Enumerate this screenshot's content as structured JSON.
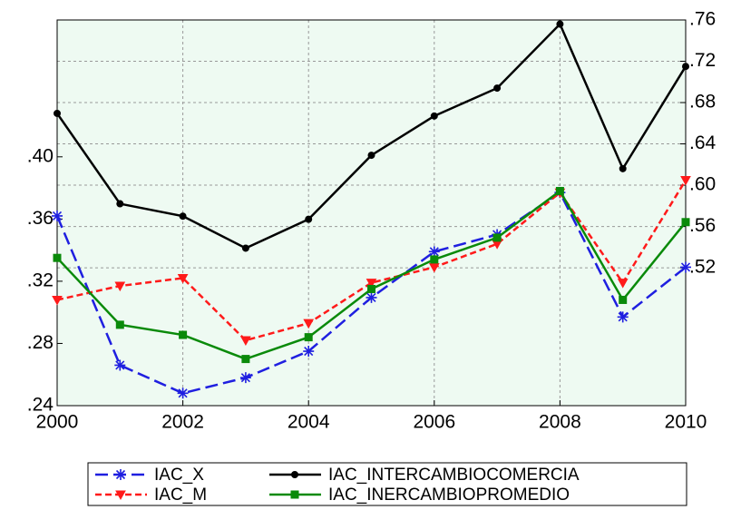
{
  "chart_data": {
    "type": "line",
    "x": [
      2000,
      2001,
      2002,
      2003,
      2004,
      2005,
      2006,
      2007,
      2008,
      2009,
      2010
    ],
    "xlim": [
      2000,
      2010
    ],
    "xticks": [
      2000,
      2002,
      2004,
      2006,
      2008,
      2010
    ],
    "ylim": [
      0.24,
      0.488
    ],
    "yticks": [
      {
        "value": 0.24,
        "label": ".24"
      },
      {
        "value": 0.28,
        "label": ".28"
      },
      {
        "value": 0.32,
        "label": ".32"
      },
      {
        "value": 0.36,
        "label": ".36"
      },
      {
        "value": 0.4,
        "label": ".40"
      }
    ],
    "y2lim": [
      0.3865,
      0.76
    ],
    "y2ticks": [
      {
        "value": 0.52,
        "label": ".52"
      },
      {
        "value": 0.56,
        "label": ".56"
      },
      {
        "value": 0.6,
        "label": ".60"
      },
      {
        "value": 0.64,
        "label": ".64"
      },
      {
        "value": 0.68,
        "label": ".68"
      },
      {
        "value": 0.72,
        "label": ".72"
      },
      {
        "value": 0.76,
        "label": ".76"
      }
    ],
    "grid": true,
    "legend": "bottom",
    "series": [
      {
        "name": "IAC_X",
        "color": "#1f1fe0",
        "marker": "star",
        "dash": "14 6",
        "values": [
          0.362,
          0.266,
          0.248,
          0.258,
          0.275,
          0.3095,
          0.339,
          0.35,
          0.377,
          0.297,
          0.329
        ]
      },
      {
        "name": "IAC_INTERCAMBIOCOMERCIA",
        "color": "#000000",
        "marker": "circle",
        "dash": "none",
        "axis": "y2",
        "values": [
          0.6695,
          0.582,
          0.57,
          0.539,
          0.567,
          0.629,
          0.667,
          0.694,
          0.756,
          0.616,
          0.715
        ]
      },
      {
        "name": "IAC_M",
        "color": "#ff1a1a",
        "marker": "triangle-down",
        "dash": "7 4",
        "values": [
          0.308,
          0.317,
          0.322,
          0.282,
          0.293,
          0.319,
          0.329,
          0.344,
          0.377,
          0.319,
          0.385
        ]
      },
      {
        "name": "IAC_INERCAMBIOPROMEDIO",
        "color": "#0a8a0a",
        "marker": "square",
        "dash": "none",
        "values": [
          0.335,
          0.292,
          0.2855,
          0.27,
          0.284,
          0.315,
          0.334,
          0.348,
          0.378,
          0.308,
          0.358
        ]
      }
    ]
  }
}
